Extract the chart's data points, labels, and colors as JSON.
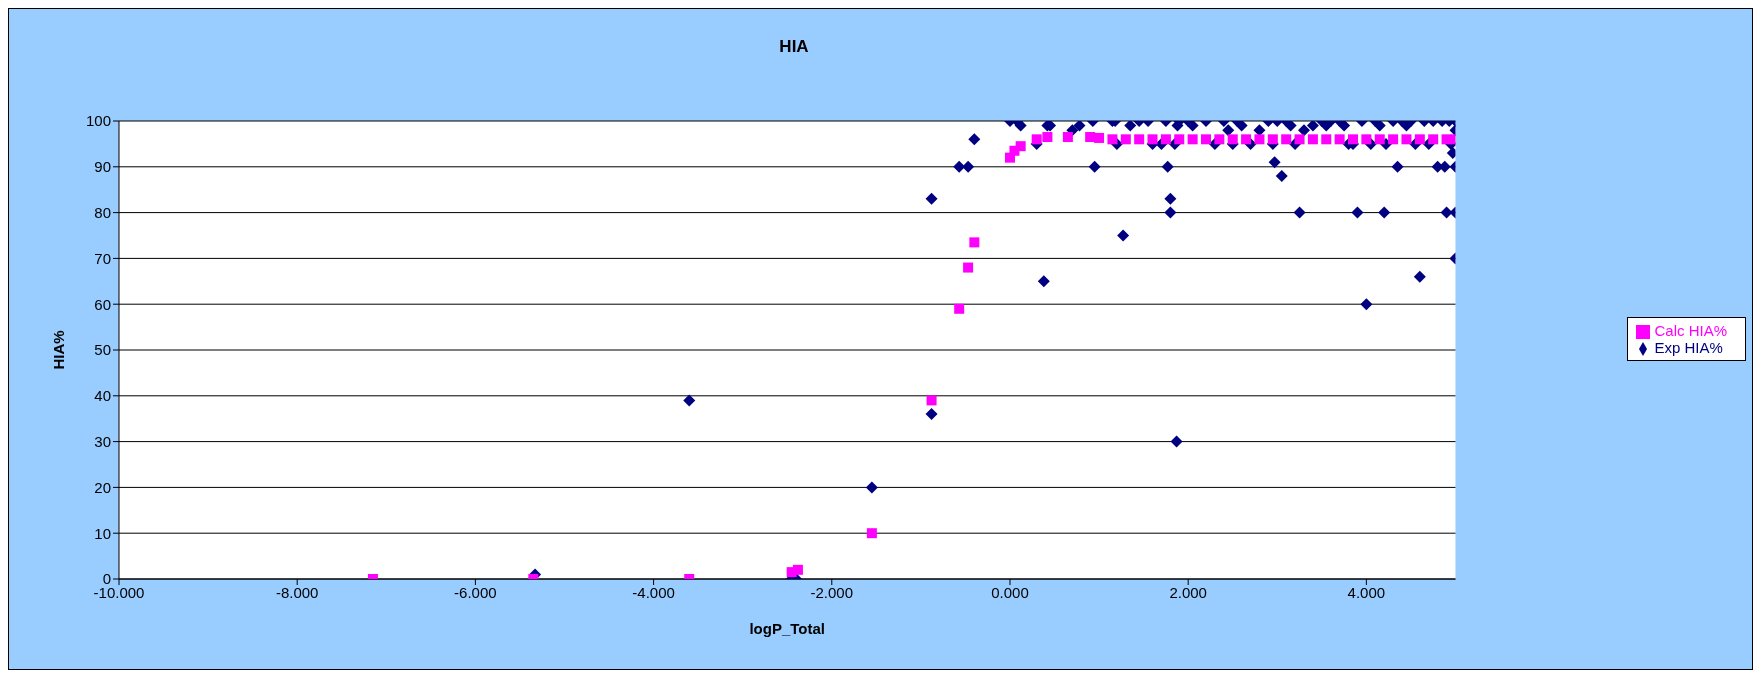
{
  "chart_data": {
    "type": "scatter",
    "title": "HIA",
    "xlabel": "logP_Total",
    "ylabel": "HIA%",
    "xlim": [
      -10,
      5
    ],
    "xticks": [
      {
        "value": -10,
        "label": "-10.000"
      },
      {
        "value": -8,
        "label": "-8.000"
      },
      {
        "value": -6,
        "label": "-6.000"
      },
      {
        "value": -4,
        "label": "-4.000"
      },
      {
        "value": -2,
        "label": "-2.000"
      },
      {
        "value": 0,
        "label": "0.000"
      },
      {
        "value": 2,
        "label": "2.000"
      },
      {
        "value": 4,
        "label": "4.000"
      }
    ],
    "ylim": [
      0,
      100
    ],
    "yticks": [
      0,
      10,
      20,
      30,
      40,
      50,
      60,
      70,
      80,
      90,
      100
    ],
    "grid": "y",
    "legend": "right",
    "series": [
      {
        "name": "Exp HIA%",
        "color": "#000080",
        "marker": "diamond",
        "x": [
          -5.33,
          -3.6,
          -2.45,
          -2.4,
          -1.55,
          -0.88,
          -0.88,
          -0.57,
          -0.47,
          -0.4,
          0.0,
          0.08,
          0.12,
          0.3,
          0.38,
          0.42,
          0.45,
          0.7,
          0.78,
          0.93,
          0.95,
          1.15,
          1.18,
          1.2,
          1.27,
          1.35,
          1.45,
          1.55,
          1.6,
          1.7,
          1.75,
          1.77,
          1.8,
          1.8,
          1.85,
          1.88,
          1.9,
          1.87,
          2.0,
          2.05,
          2.2,
          2.3,
          2.4,
          2.45,
          2.5,
          2.55,
          2.6,
          2.7,
          2.8,
          2.9,
          2.95,
          3.0,
          2.97,
          3.05,
          3.1,
          3.15,
          3.2,
          3.25,
          3.3,
          3.4,
          3.5,
          3.55,
          3.6,
          3.7,
          3.75,
          3.8,
          3.85,
          3.9,
          3.95,
          4.0,
          4.05,
          4.1,
          4.15,
          4.2,
          4.22,
          4.3,
          4.35,
          4.4,
          4.45,
          4.5,
          4.55,
          4.6,
          4.65,
          4.7,
          4.75,
          4.8,
          4.85,
          4.88,
          4.9,
          4.93,
          4.95,
          4.97,
          5.0,
          5.0,
          5.0,
          5.0,
          5.0
        ],
        "values": [
          1,
          39,
          0,
          0,
          20,
          83,
          36,
          90,
          90,
          96,
          100,
          100,
          99,
          95,
          65,
          99,
          99,
          98,
          99,
          100,
          90,
          100,
          100,
          95,
          75,
          99,
          100,
          100,
          95,
          95,
          100,
          90,
          80,
          83,
          95,
          99,
          100,
          30,
          100,
          99,
          100,
          95,
          100,
          98,
          95,
          100,
          99,
          95,
          98,
          100,
          95,
          100,
          91,
          88,
          100,
          99,
          95,
          80,
          98,
          99,
          100,
          99,
          100,
          100,
          99,
          95,
          95,
          80,
          100,
          60,
          95,
          100,
          99,
          80,
          95,
          100,
          90,
          100,
          99,
          100,
          95,
          66,
          100,
          95,
          100,
          90,
          100,
          90,
          80,
          100,
          95,
          93,
          100,
          98,
          90,
          80,
          70
        ]
      },
      {
        "name": "Calc HIA%",
        "color": "#ff00ff",
        "marker": "square",
        "x": [
          -7.15,
          -5.35,
          -3.6,
          -2.45,
          -2.38,
          -1.55,
          -0.88,
          -0.57,
          -0.47,
          -0.4,
          0.0,
          0.05,
          0.12,
          0.3,
          0.42,
          0.65,
          0.9,
          1.0,
          1.15,
          1.3,
          1.45,
          1.6,
          1.75,
          1.9,
          2.05,
          2.2,
          2.35,
          2.5,
          2.65,
          2.8,
          2.95,
          3.1,
          3.25,
          3.4,
          3.55,
          3.7,
          3.85,
          4.0,
          4.15,
          4.3,
          4.45,
          4.6,
          4.75,
          4.9,
          5.0
        ],
        "values": [
          0,
          0,
          0,
          1.5,
          2,
          10,
          39,
          59,
          68,
          73.5,
          92,
          93.5,
          94.5,
          96,
          96.5,
          96.5,
          96.5,
          96.3,
          96,
          96,
          96,
          96,
          96,
          96,
          96,
          96,
          96,
          96,
          96,
          96,
          96,
          96,
          96,
          96,
          96,
          96,
          96,
          96,
          96,
          96,
          96,
          96,
          96,
          96,
          96
        ]
      }
    ]
  }
}
